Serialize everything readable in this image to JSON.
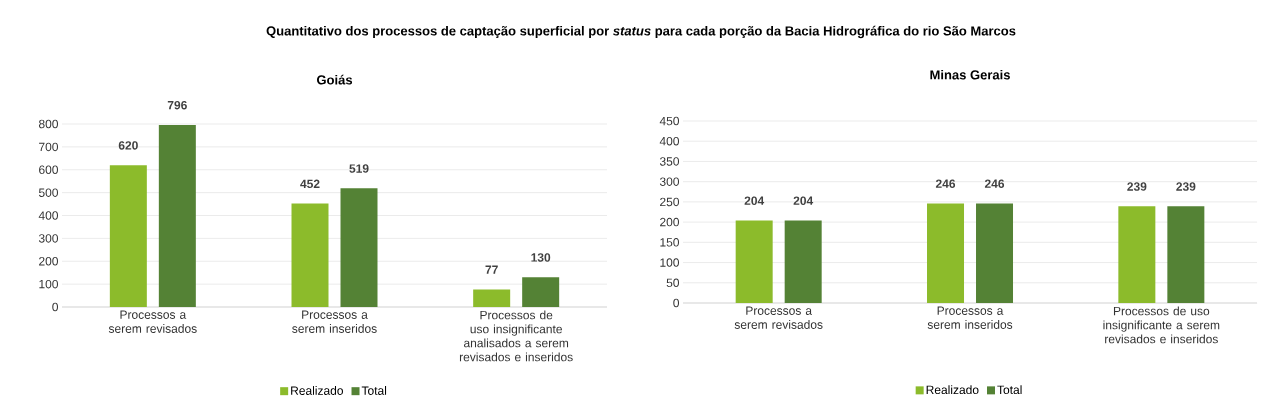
{
  "chart_data": [
    {
      "type": "bar",
      "title": "Goiás",
      "annotations": [
        "Quantitativo dos processos de captação superficial por *status* para cada porção da Bacia Hidrográfica do rio São Marcos"
      ],
      "categories": [
        "Processos a serem revisados",
        "Processos a serem inseridos",
        "Processos de uso insignificante analisados a serem revisados e inseridos"
      ],
      "series": [
        {
          "name": "Realizado",
          "color": "#8cbb2b",
          "values": [
            620,
            452,
            77
          ]
        },
        {
          "name": "Total",
          "color": "#548235",
          "values": [
            796,
            519,
            130
          ]
        }
      ],
      "ylim": [
        0,
        800
      ],
      "yticks": [
        0,
        100,
        200,
        300,
        400,
        500,
        600,
        700,
        800
      ],
      "grid": "y",
      "legend": "bottom",
      "data_labels": true
    },
    {
      "type": "bar",
      "title": "Minas Gerais",
      "categories": [
        "Processos a serem revisados",
        "Processos a serem inseridos",
        "Processos de uso insignificante a serem revisados e inseridos"
      ],
      "series": [
        {
          "name": "Realizado",
          "color": "#8cbb2b",
          "values": [
            204,
            246,
            239
          ]
        },
        {
          "name": "Total",
          "color": "#548235",
          "values": [
            204,
            246,
            239
          ]
        }
      ],
      "ylim": [
        0,
        450
      ],
      "yticks": [
        0,
        50,
        100,
        150,
        200,
        250,
        300,
        350,
        400,
        450
      ],
      "grid": "y",
      "legend": "bottom",
      "data_labels": true
    }
  ]
}
